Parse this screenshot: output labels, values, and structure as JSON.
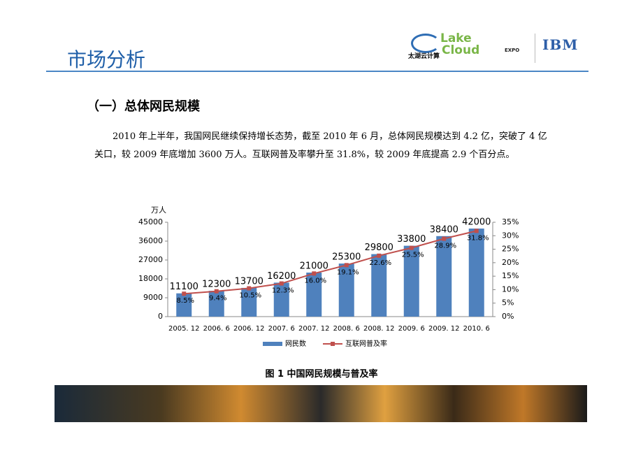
{
  "header": {
    "title": "市场分析",
    "logos": [
      "Lake",
      "Cloud",
      "太湖云计算",
      "EXPO",
      "IBM"
    ]
  },
  "heading": "（一）总体网民规模",
  "paragraph": "2010 年上半年，我国网民继续保持增长态势，截至 2010 年 6 月，总体网民规模达到 4.2 亿，突破了 4 亿关口，较 2009 年底增加 3600 万人。互联网普及率攀升至 31.8%，较 2009 年底提高 2.9 个百分点。",
  "chart_data": {
    "type": "bar",
    "y_label": "万人",
    "categories": [
      "2005. 12",
      "2006. 6",
      "2006. 12",
      "2007. 6",
      "2007. 12",
      "2008. 6",
      "2008. 12",
      "2009. 6",
      "2009. 12",
      "2010. 6"
    ],
    "series": [
      {
        "name": "网民数",
        "color": "#4f81bd",
        "values": [
          11100,
          12300,
          13700,
          16200,
          21000,
          25300,
          29800,
          33800,
          38400,
          42000
        ]
      },
      {
        "name": "互联网普及率",
        "color": "#c0504d",
        "type": "line",
        "axis": "y2",
        "values": [
          8.5,
          9.4,
          10.5,
          12.3,
          16.0,
          19.1,
          22.6,
          25.5,
          28.9,
          31.8
        ],
        "value_labels": [
          "8.5%",
          "9.4%",
          "10.5%",
          "12.3%",
          "16.0%",
          "19.1%",
          "22.6%",
          "25.5%",
          "28.9%",
          "31.8%"
        ]
      }
    ],
    "ylim": [
      0,
      45000
    ],
    "yticks": [
      0,
      9000,
      18000,
      27000,
      36000,
      45000
    ],
    "y2lim": [
      0,
      35
    ],
    "y2ticks": [
      {
        "value": 0,
        "label": "0%"
      },
      {
        "value": 5,
        "label": "5%"
      },
      {
        "value": 10,
        "label": "10%"
      },
      {
        "value": 15,
        "label": "15%"
      },
      {
        "value": 20,
        "label": "20%"
      },
      {
        "value": 25,
        "label": "25%"
      },
      {
        "value": 30,
        "label": "30%"
      },
      {
        "value": 35,
        "label": "35%"
      }
    ],
    "legend": "bottom"
  },
  "caption": "图 1 中国网民规模与普及率"
}
